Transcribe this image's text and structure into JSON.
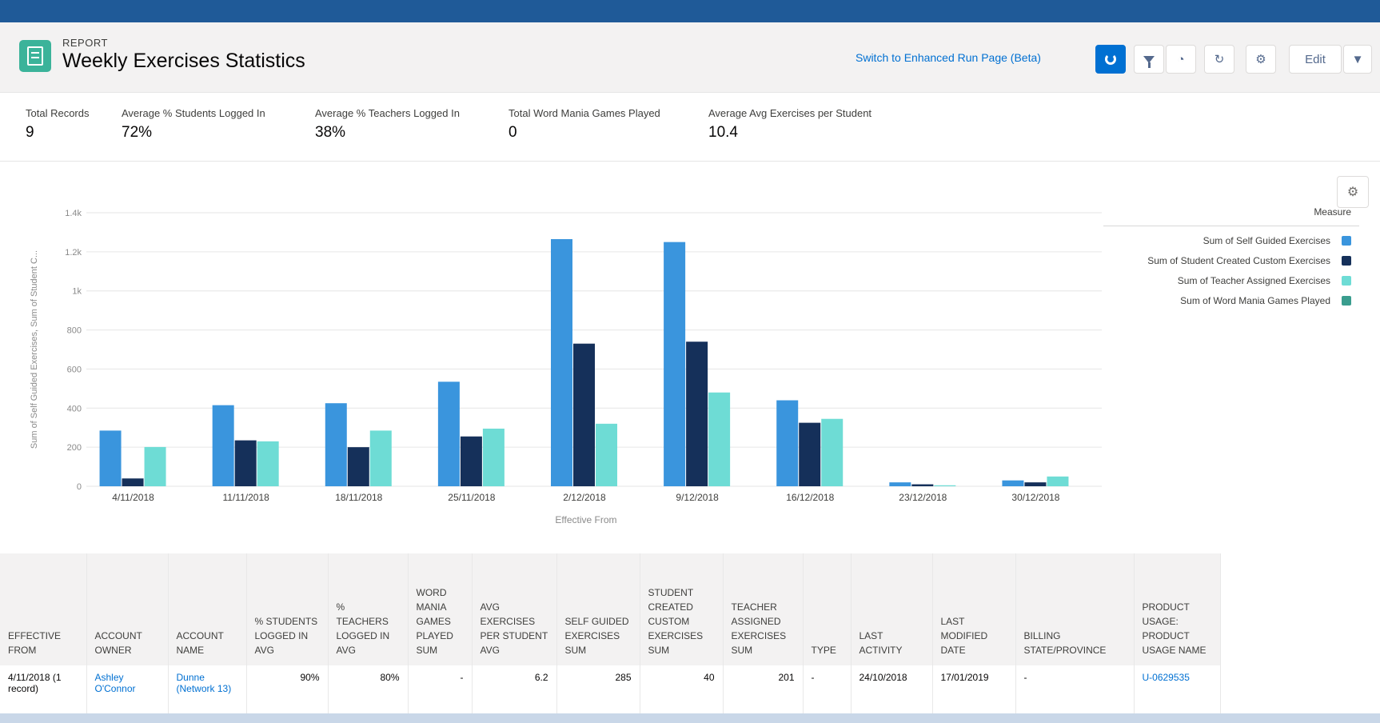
{
  "header": {
    "eyebrow": "REPORT",
    "title": "Weekly Exercises Statistics",
    "switch_link": "Switch to Enhanced Run Page (Beta)",
    "edit_label": "Edit"
  },
  "summary": [
    {
      "label": "Total Records",
      "value": "9"
    },
    {
      "label": "Average % Students Logged In",
      "value": "72%"
    },
    {
      "label": "Average % Teachers Logged In",
      "value": "38%"
    },
    {
      "label": "Total Word Mania Games Played",
      "value": "0"
    },
    {
      "label": "Average Avg Exercises per Student",
      "value": "10.4"
    }
  ],
  "chart_data": {
    "type": "bar",
    "categories": [
      "4/11/2018",
      "11/11/2018",
      "18/11/2018",
      "25/11/2018",
      "2/12/2018",
      "9/12/2018",
      "16/12/2018",
      "23/12/2018",
      "30/12/2018"
    ],
    "series": [
      {
        "name": "Sum of Self Guided Exercises",
        "color": "#3a95dd",
        "values": [
          285,
          415,
          425,
          535,
          1265,
          1250,
          440,
          20,
          30
        ]
      },
      {
        "name": "Sum of Student Created Custom Exercises",
        "color": "#15305a",
        "values": [
          40,
          235,
          200,
          255,
          730,
          740,
          325,
          10,
          20
        ]
      },
      {
        "name": "Sum of Teacher Assigned Exercises",
        "color": "#6edcd5",
        "values": [
          201,
          230,
          285,
          295,
          320,
          480,
          345,
          5,
          50
        ]
      },
      {
        "name": "Sum of Word Mania Games Played",
        "color": "#3a9d8e",
        "values": [
          0,
          0,
          0,
          0,
          0,
          0,
          0,
          0,
          0
        ]
      }
    ],
    "y_ticks": [
      "0",
      "200",
      "400",
      "600",
      "800",
      "1k",
      "1.2k",
      "1.4k"
    ],
    "ylim": [
      0,
      1400
    ],
    "xlabel": "Effective From",
    "ylabel": "Sum of Self Guided Exercises, Sum of Student C...",
    "legend_title": "Measure",
    "legend_position": "right",
    "grid": true
  },
  "table": {
    "headers": [
      "EFFECTIVE FROM",
      "ACCOUNT OWNER",
      "ACCOUNT NAME",
      "% STUDENTS LOGGED IN Avg",
      "% TEACHERS LOGGED IN Avg",
      "WORD MANIA GAMES PLAYED Sum",
      "AVG EXERCISES PER STUDENT Avg",
      "SELF GUIDED EXERCISES Sum",
      "STUDENT CREATED CUSTOM EXERCISES Sum",
      "TEACHER ASSIGNED EXERCISES Sum",
      "TYPE",
      "LAST ACTIVITY",
      "LAST MODIFIED DATE",
      "BILLING STATE/PROVINCE",
      "PRODUCT USAGE: PRODUCT USAGE NAME"
    ],
    "row": {
      "effective_from": "4/11/2018 (1 record)",
      "owner": "Ashley O'Connor",
      "account": "Dunne (Network 13)",
      "students": "90%",
      "teachers": "80%",
      "word_mania": "-",
      "avg_exercises": "6.2",
      "self_guided": "285",
      "student_created": "40",
      "teacher_assigned": "201",
      "type": "-",
      "last_activity": "24/10/2018",
      "last_modified": "17/01/2019",
      "billing_state": "-",
      "product_usage": "U-0629535"
    }
  }
}
